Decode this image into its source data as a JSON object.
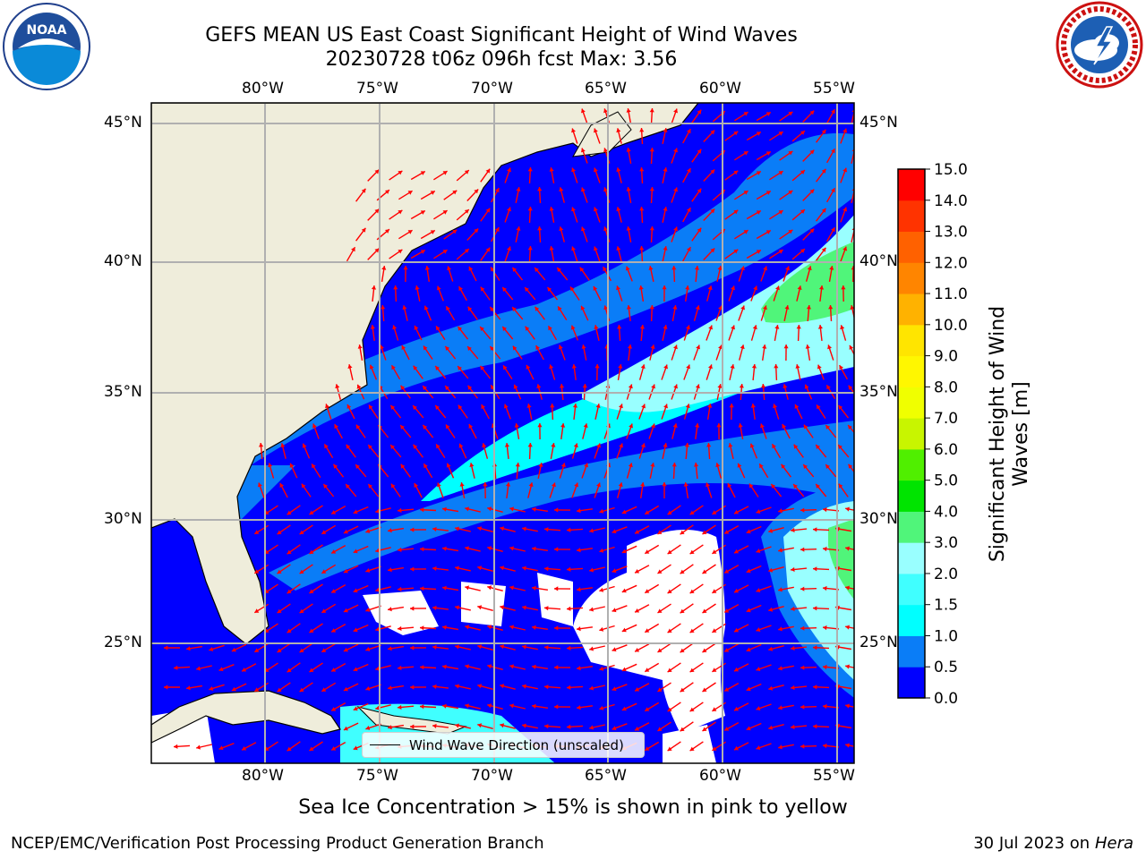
{
  "header": {
    "title_line1": "GEFS MEAN US East Coast Significant Height of Wind Waves",
    "title_line2": "20230728 t06z 096h fcst   Max: 3.56"
  },
  "logos": {
    "left": {
      "icon": "noaa-logo",
      "text": "NOAA"
    },
    "right": {
      "icon": "nws-logo",
      "text": "NATIONAL WEATHER SERVICE"
    }
  },
  "map": {
    "lon_labels": [
      "80°W",
      "75°W",
      "70°W",
      "65°W",
      "60°W",
      "55°W"
    ],
    "lat_labels": [
      "45°N",
      "40°N",
      "35°N",
      "30°N",
      "25°N"
    ],
    "lon_range": [
      -85,
      -54
    ],
    "lat_range": [
      20.5,
      45.8
    ],
    "gridlines": true,
    "colors": {
      "land": "#efeddb",
      "missing": "#ffffff",
      "grid": "#b0b0b0",
      "arrow": "#ff0000"
    }
  },
  "legend": {
    "label": "Wind Wave Direction (unscaled)",
    "placement": "bottom-center"
  },
  "colorbar": {
    "title": "Significant Height of Wind Waves [m]",
    "ticks": [
      "0.0",
      "0.5",
      "1.0",
      "1.5",
      "2.0",
      "3.0",
      "4.0",
      "5.0",
      "6.0",
      "7.0",
      "8.0",
      "9.0",
      "10.0",
      "11.0",
      "12.0",
      "13.0",
      "14.0",
      "15.0"
    ],
    "colors": [
      "#0000ff",
      "#0a7df7",
      "#00ffff",
      "#40ffff",
      "#99ffff",
      "#50f57a",
      "#00e400",
      "#50ef00",
      "#c8f500",
      "#f0ff00",
      "#fff700",
      "#ffe500",
      "#ffb200",
      "#ff8500",
      "#ff6100",
      "#ff3300",
      "#ff0000"
    ]
  },
  "notes": {
    "ice": "Sea Ice Concentration > 15% is shown in pink to yellow",
    "footer_left": "NCEP/EMC/Verification Post Processing Product Generation Branch",
    "footer_date": "30 Jul 2023 on ",
    "footer_machine": "Hera"
  }
}
